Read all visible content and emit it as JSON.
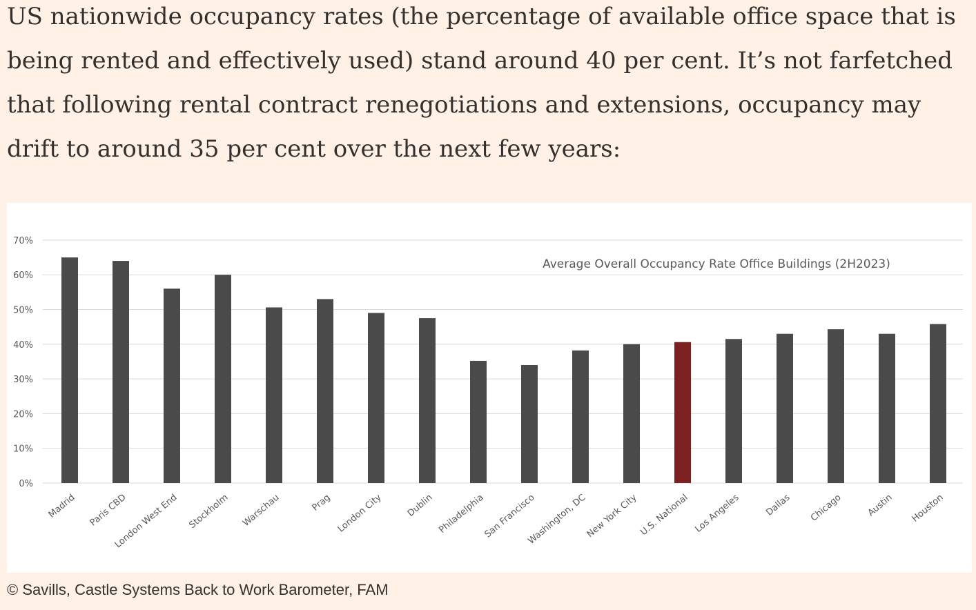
{
  "article": {
    "paragraph": "US nationwide occupancy rates (the percentage of available office space that is being rented and effectively used) stand around 40 per cent. It’s not farfetched that following rental contract renegotiations and extensions, occupancy may drift to around 35 per cent over the next few years:",
    "caption": "© Savills, Castle Systems Back to Work Barometer, FAM"
  },
  "chart_data": {
    "type": "bar",
    "title": "Average Overall Occupancy Rate Office Buildings (2H2023)",
    "xlabel": "",
    "ylabel": "",
    "ylim": [
      0,
      70
    ],
    "yticks": [
      "0%",
      "10%",
      "20%",
      "30%",
      "40%",
      "50%",
      "60%",
      "70%"
    ],
    "grid": true,
    "categories": [
      "Madrid",
      "Paris CBD",
      "London West End",
      "Stockholm",
      "Warschau",
      "Prag",
      "London City",
      "Dublin",
      "Philadelphia",
      "San Francisco",
      "Washington, DC",
      "New York City",
      "U.S. National",
      "Los Angeles",
      "Dallas",
      "Chicago",
      "Austin",
      "Houston"
    ],
    "values": [
      65,
      64,
      56,
      60,
      50.6,
      53,
      49,
      47.5,
      35.2,
      34,
      38.2,
      40,
      40.6,
      41.5,
      43,
      44.3,
      43,
      45.8
    ],
    "highlight": "U.S. National",
    "colors": {
      "bar": "#4a4a4a",
      "highlight": "#7d2020",
      "grid": "#d9d9d9",
      "text": "#595959"
    }
  }
}
